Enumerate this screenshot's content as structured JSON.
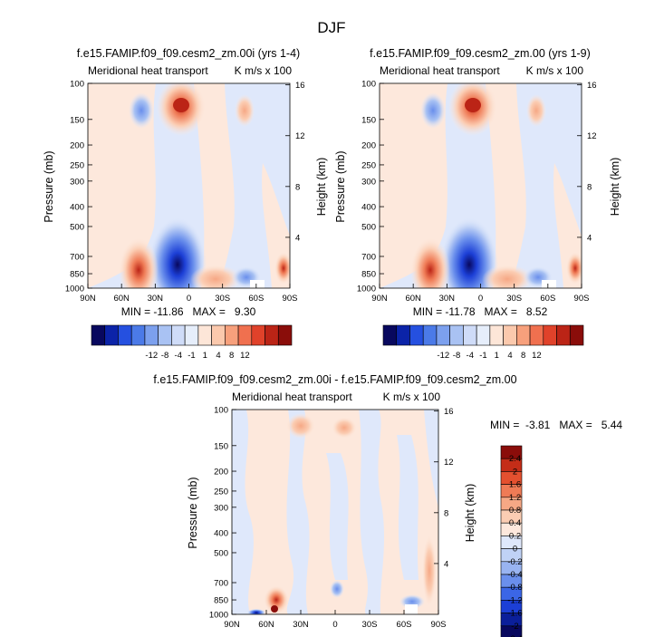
{
  "page_title": "DJF",
  "chart_data": [
    {
      "type": "heatmap",
      "title": "f.e15.FAMIP.f09_f09.cesm2_zm.00i (yrs 1-4)",
      "left_string": "Meridional heat transport",
      "right_string": "K m/s x 100",
      "ylabel": "Pressure (mb)",
      "ylabel_right": "Height (km)",
      "x_ticks": [
        "90N",
        "60N",
        "30N",
        "0",
        "30S",
        "60S",
        "90S"
      ],
      "y_ticks": [
        "100",
        "150",
        "200",
        "250",
        "300",
        "400",
        "500",
        "700",
        "850",
        "1000"
      ],
      "y_right_ticks": [
        "16",
        "12",
        "8",
        "4"
      ],
      "y_log_scale": true,
      "stats_text": "MIN = -11.86   MAX =   9.30",
      "min": -11.86,
      "max": 9.3,
      "colorbar_labels": [
        "-12",
        "-8",
        "-4",
        "-1",
        "1",
        "4",
        "8",
        "12"
      ]
    },
    {
      "type": "heatmap",
      "title": "f.e15.FAMIP.f09_f09.cesm2_zm.00 (yrs 1-9)",
      "left_string": "Meridional heat transport",
      "right_string": "K m/s x 100",
      "ylabel": "Pressure (mb)",
      "ylabel_right": "Height (km)",
      "x_ticks": [
        "90N",
        "60N",
        "30N",
        "0",
        "30S",
        "60S",
        "90S"
      ],
      "y_ticks": [
        "100",
        "150",
        "200",
        "250",
        "300",
        "400",
        "500",
        "700",
        "850",
        "1000"
      ],
      "y_right_ticks": [
        "16",
        "12",
        "8",
        "4"
      ],
      "y_log_scale": true,
      "stats_text": "MIN = -11.78   MAX =   8.52",
      "min": -11.78,
      "max": 8.52,
      "colorbar_labels": [
        "-12",
        "-8",
        "-4",
        "-1",
        "1",
        "4",
        "8",
        "12"
      ]
    },
    {
      "type": "heatmap",
      "title": "f.e15.FAMIP.f09_f09.cesm2_zm.00i - f.e15.FAMIP.f09_f09.cesm2_zm.00",
      "left_string": "Meridional heat transport",
      "right_string": "K m/s x 100",
      "ylabel": "Pressure (mb)",
      "ylabel_right": "Height (km)",
      "x_ticks": [
        "90N",
        "60N",
        "30N",
        "0",
        "30S",
        "60S",
        "90S"
      ],
      "y_ticks": [
        "100",
        "150",
        "200",
        "250",
        "300",
        "400",
        "500",
        "700",
        "850",
        "1000"
      ],
      "y_right_ticks": [
        "16",
        "12",
        "8",
        "4"
      ],
      "y_log_scale": true,
      "stats_text": "MIN =  -3.81   MAX =   5.44",
      "min": -3.81,
      "max": 5.44,
      "colorbar_labels": [
        "2.4",
        "2",
        "1.6",
        "1.2",
        "0.8",
        "0.4",
        "0.2",
        "0",
        "-0.2",
        "-0.4",
        "-0.8",
        "-1.2",
        "-1.6",
        "-2",
        "-2.4"
      ]
    }
  ],
  "colors": {
    "bar_scale": [
      "#08085e",
      "#0b23a8",
      "#2550e0",
      "#4b7ae8",
      "#7ca0ee",
      "#a9c2f3",
      "#cfdcf8",
      "#e6eefb",
      "#fde6d8",
      "#fbc9ad",
      "#f7a07c",
      "#f0704f",
      "#e0422a",
      "#bb2416",
      "#8a0d0a"
    ],
    "diff_scale": [
      "#08085e",
      "#0b1f9a",
      "#1c3fd6",
      "#3b66e6",
      "#6a8fec",
      "#99b4f1",
      "#c0d2f6",
      "#dfe8fb",
      "#fde8dc",
      "#fbcdb3",
      "#f6a885",
      "#ef7b56",
      "#e4502f",
      "#c42d18",
      "#8a0d0a"
    ]
  }
}
